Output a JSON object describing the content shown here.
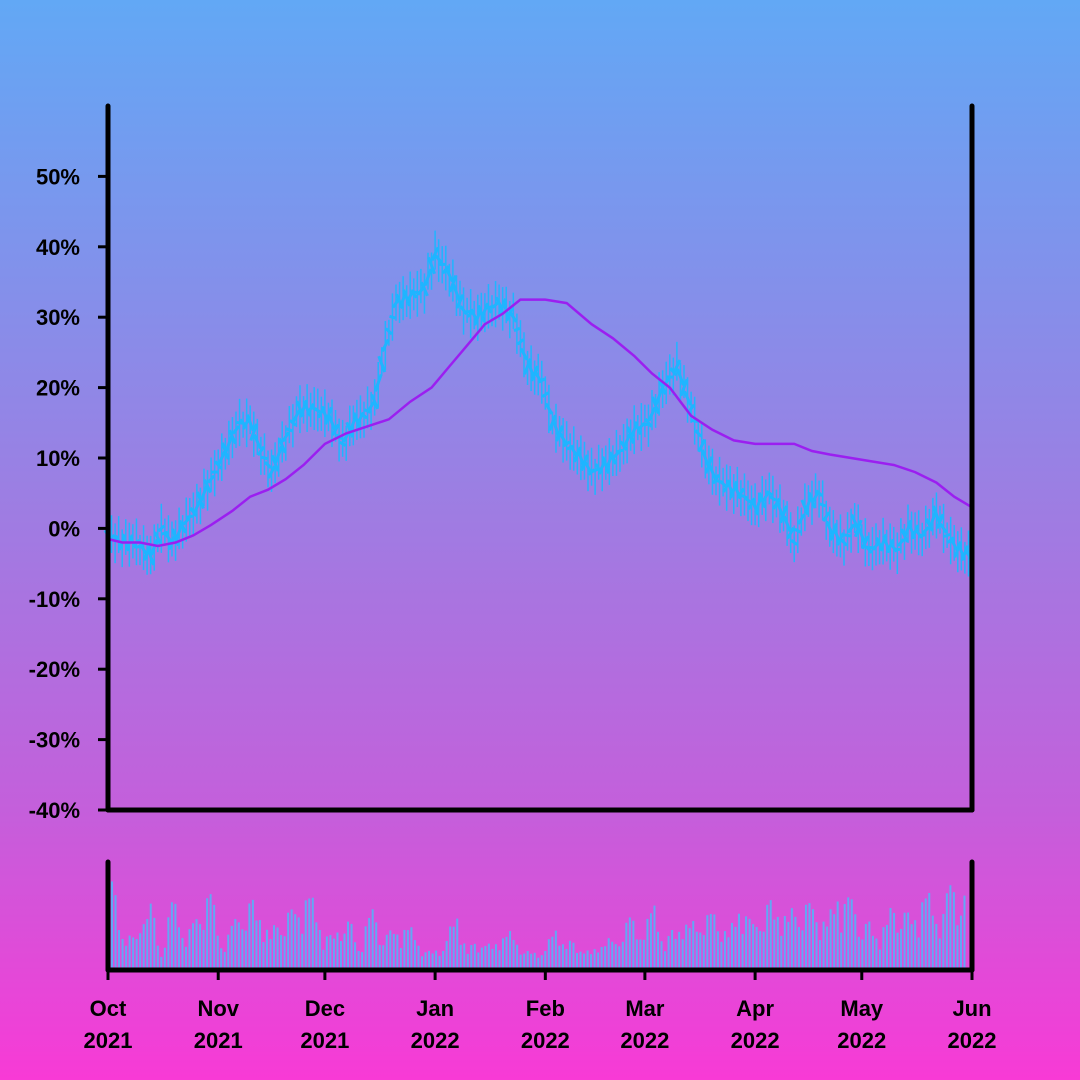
{
  "chart_data": [
    {
      "type": "line",
      "title": "",
      "xlabel": "",
      "ylabel": "",
      "x_range": [
        "2021-10-01",
        "2022-06-01"
      ],
      "ylim": [
        -40,
        60
      ],
      "y_ticks": [
        "-40%",
        "-30%",
        "-20%",
        "-10%",
        "0%",
        "10%",
        "20%",
        "30%",
        "40%",
        "50%"
      ],
      "y_tick_values": [
        -40,
        -30,
        -20,
        -10,
        0,
        10,
        20,
        30,
        40,
        50
      ],
      "grid": false,
      "colors": {
        "price": "#1fb5ff",
        "moving_average": "#9b1ff0",
        "axes": "#000000"
      },
      "series": [
        {
          "key": "price",
          "style": "ohlc-bars",
          "color": "#1fb5ff",
          "x": [
            "2021-10-01",
            "2021-10-05",
            "2021-10-09",
            "2021-10-13",
            "2021-10-16",
            "2021-10-19",
            "2021-10-23",
            "2021-10-26",
            "2021-10-30",
            "2021-11-03",
            "2021-11-07",
            "2021-11-10",
            "2021-11-13",
            "2021-11-16",
            "2021-11-20",
            "2021-11-24",
            "2021-11-28",
            "2021-12-02",
            "2021-12-06",
            "2021-12-09",
            "2021-12-12",
            "2021-12-15",
            "2021-12-18",
            "2021-12-21",
            "2021-12-25",
            "2021-12-29",
            "2022-01-01",
            "2022-01-05",
            "2022-01-09",
            "2022-01-13",
            "2022-01-15",
            "2022-01-19",
            "2022-01-23",
            "2022-01-27",
            "2022-01-31",
            "2022-02-03",
            "2022-02-07",
            "2022-02-11",
            "2022-02-14",
            "2022-02-18",
            "2022-02-22",
            "2022-02-26",
            "2022-03-02",
            "2022-03-06",
            "2022-03-10",
            "2022-03-14",
            "2022-03-18",
            "2022-03-21",
            "2022-03-24",
            "2022-03-28",
            "2022-04-01",
            "2022-04-05",
            "2022-04-09",
            "2022-04-12",
            "2022-04-15",
            "2022-04-19",
            "2022-04-22",
            "2022-04-26",
            "2022-04-29",
            "2022-05-03",
            "2022-05-07",
            "2022-05-11",
            "2022-05-14",
            "2022-05-18",
            "2022-05-22",
            "2022-05-25",
            "2022-05-28",
            "2022-06-01"
          ],
          "y": [
            -1,
            -2,
            -2,
            -4,
            0,
            -2,
            1,
            3,
            7,
            11,
            15,
            15,
            11,
            8,
            13,
            17,
            17,
            16,
            12,
            15,
            16,
            18,
            26,
            32,
            33,
            34,
            39,
            36,
            31,
            30,
            31,
            32,
            30,
            23,
            21,
            15,
            12,
            10,
            8,
            9,
            11,
            14,
            15,
            20,
            23,
            17,
            10,
            7,
            6,
            5,
            3,
            5,
            2,
            -2,
            3,
            5,
            0,
            -2,
            1,
            -3,
            -2,
            -3,
            0,
            -1,
            2,
            -1,
            -3,
            -4
          ],
          "y_range": [
            -1,
            -2,
            -2,
            -4,
            0,
            -2,
            1,
            3,
            7,
            11,
            15,
            15,
            11,
            8,
            13,
            17,
            17,
            16,
            12,
            15,
            16,
            18,
            26,
            32,
            33,
            34,
            39,
            36,
            31,
            30,
            31,
            32,
            30,
            23,
            21,
            15,
            12,
            10,
            8,
            9,
            11,
            14,
            15,
            20,
            23,
            17,
            10,
            7,
            6,
            5,
            3,
            5,
            2,
            -2,
            3,
            5,
            0,
            -2,
            1,
            -3,
            -2,
            -3,
            0,
            -1,
            2,
            -1,
            -3,
            -4
          ]
        },
        {
          "key": "moving_average",
          "style": "line",
          "color": "#9b1ff0",
          "x": [
            "2021-10-01",
            "2021-10-05",
            "2021-10-10",
            "2021-10-15",
            "2021-10-20",
            "2021-10-25",
            "2021-10-30",
            "2021-11-05",
            "2021-11-10",
            "2021-11-15",
            "2021-11-20",
            "2021-11-25",
            "2021-12-01",
            "2021-12-07",
            "2021-12-13",
            "2021-12-19",
            "2021-12-25",
            "2021-12-31",
            "2022-01-05",
            "2022-01-10",
            "2022-01-15",
            "2022-01-20",
            "2022-01-25",
            "2022-02-01",
            "2022-02-07",
            "2022-02-14",
            "2022-02-20",
            "2022-02-26",
            "2022-03-03",
            "2022-03-08",
            "2022-03-14",
            "2022-03-20",
            "2022-03-26",
            "2022-04-01",
            "2022-04-06",
            "2022-04-12",
            "2022-04-17",
            "2022-04-22",
            "2022-04-28",
            "2022-05-04",
            "2022-05-10",
            "2022-05-16",
            "2022-05-22",
            "2022-05-27",
            "2022-06-01"
          ],
          "y": [
            -1.5,
            -2,
            -2,
            -2.5,
            -2,
            -1,
            0.5,
            2.5,
            4.5,
            5.5,
            7,
            9,
            12,
            13.5,
            14.5,
            15.5,
            18,
            20,
            23,
            26,
            29,
            30.5,
            32.5,
            32.5,
            32,
            29,
            27,
            24.5,
            22,
            20,
            16,
            14,
            12.5,
            12,
            12,
            12,
            11,
            10.5,
            10,
            9.5,
            9,
            8,
            6.5,
            4.5,
            3
          ]
        },
        {
          "key": "volume",
          "style": "bars",
          "color": "#62a8f5",
          "x": [
            "2021-10-01",
            "2021-10-04",
            "2021-10-08",
            "2021-10-11",
            "2021-10-15",
            "2021-10-18",
            "2021-10-22",
            "2021-10-25",
            "2021-10-29",
            "2021-11-01",
            "2021-11-05",
            "2021-11-08",
            "2021-11-12",
            "2021-11-15",
            "2021-11-19",
            "2021-11-22",
            "2021-11-26",
            "2021-11-29",
            "2021-12-03",
            "2021-12-06",
            "2021-12-10",
            "2021-12-13",
            "2021-12-17",
            "2021-12-20",
            "2021-12-24",
            "2021-12-27",
            "2021-12-31",
            "2022-01-03",
            "2022-01-07",
            "2022-01-10",
            "2022-01-14",
            "2022-01-17",
            "2022-01-21",
            "2022-01-24",
            "2022-01-28",
            "2022-01-31",
            "2022-02-04",
            "2022-02-07",
            "2022-02-11",
            "2022-02-14",
            "2022-02-18",
            "2022-02-21",
            "2022-02-25",
            "2022-02-28",
            "2022-03-04",
            "2022-03-07",
            "2022-03-11",
            "2022-03-14",
            "2022-03-18",
            "2022-03-21",
            "2022-03-25",
            "2022-03-28",
            "2022-04-01",
            "2022-04-04",
            "2022-04-08",
            "2022-04-11",
            "2022-04-15",
            "2022-04-18",
            "2022-04-22",
            "2022-04-25",
            "2022-04-29",
            "2022-05-02",
            "2022-05-06",
            "2022-05-09",
            "2022-05-13",
            "2022-05-16",
            "2022-05-20",
            "2022-05-23",
            "2022-05-27",
            "2022-05-30"
          ],
          "values": [
            0.95,
            0.4,
            0.3,
            0.9,
            0.15,
            0.75,
            0.4,
            0.5,
            0.85,
            0.25,
            0.5,
            0.8,
            0.6,
            0.35,
            0.7,
            0.55,
            0.85,
            0.45,
            0.3,
            0.7,
            0.2,
            0.65,
            0.45,
            0.35,
            0.5,
            0.25,
            0.15,
            0.3,
            0.55,
            0.2,
            0.35,
            0.2,
            0.45,
            0.25,
            0.15,
            0.2,
            0.4,
            0.3,
            0.25,
            0.15,
            0.35,
            0.25,
            0.55,
            0.4,
            0.65,
            0.3,
            0.5,
            0.45,
            0.6,
            0.55,
            0.35,
            0.7,
            0.45,
            0.75,
            0.65,
            0.55,
            0.8,
            0.6,
            0.5,
            0.8,
            0.7,
            0.6,
            0.35,
            0.55,
            0.8,
            0.45,
            0.9,
            0.5,
            0.85,
            0.95
          ]
        }
      ],
      "x_tick_values": [
        "2021-10-01",
        "2021-11-01",
        "2021-12-01",
        "2022-01-01",
        "2022-02-01",
        "2022-03-01",
        "2022-04-01",
        "2022-05-01",
        "2022-06-01"
      ],
      "x_ticks": [
        {
          "month": "Oct",
          "year": "2021"
        },
        {
          "month": "Nov",
          "year": "2021"
        },
        {
          "month": "Dec",
          "year": "2021"
        },
        {
          "month": "Jan",
          "year": "2022"
        },
        {
          "month": "Feb",
          "year": "2022"
        },
        {
          "month": "Mar",
          "year": "2022"
        },
        {
          "month": "Apr",
          "year": "2022"
        },
        {
          "month": "May",
          "year": "2022"
        },
        {
          "month": "Jun",
          "year": "2022"
        }
      ]
    }
  ]
}
